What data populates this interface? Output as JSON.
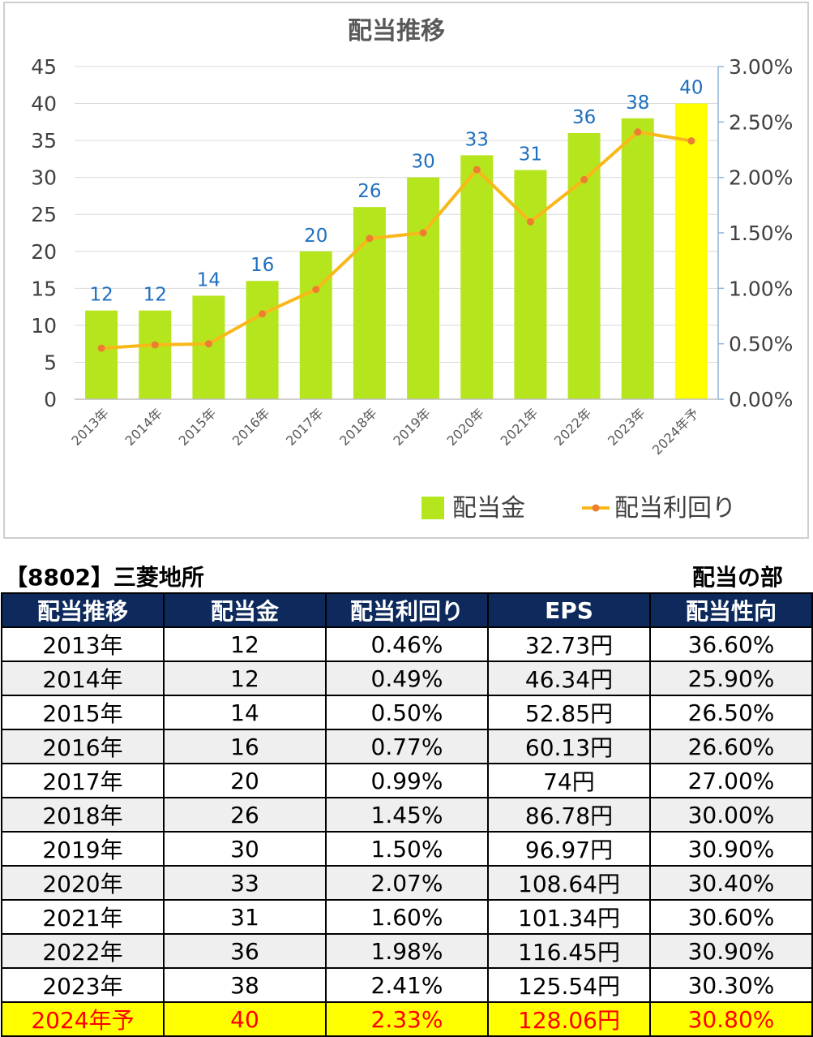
{
  "chart_data": {
    "type": "bar+line",
    "title": "配当推移",
    "categories": [
      "2013年",
      "2014年",
      "2015年",
      "2016年",
      "2017年",
      "2018年",
      "2019年",
      "2020年",
      "2021年",
      "2022年",
      "2023年",
      "2024年予"
    ],
    "series": [
      {
        "name": "配当金",
        "type": "bar",
        "axis": "left",
        "values": [
          12,
          12,
          14,
          16,
          20,
          26,
          30,
          33,
          31,
          36,
          38,
          40
        ],
        "data_labels": [
          "12",
          "12",
          "14",
          "16",
          "20",
          "26",
          "30",
          "33",
          "31",
          "36",
          "38",
          "40"
        ]
      },
      {
        "name": "配当利回り",
        "type": "line",
        "axis": "right",
        "values": [
          0.46,
          0.49,
          0.5,
          0.77,
          0.99,
          1.45,
          1.5,
          2.07,
          1.6,
          1.98,
          2.41,
          2.33
        ]
      }
    ],
    "y_left": {
      "range": [
        0,
        45
      ],
      "ticks": [
        "0",
        "5",
        "10",
        "15",
        "20",
        "25",
        "30",
        "35",
        "40",
        "45"
      ]
    },
    "y_right": {
      "range": [
        0,
        3.0
      ],
      "ticks": [
        "0.00%",
        "0.50%",
        "1.00%",
        "1.50%",
        "2.00%",
        "2.50%",
        "3.00%"
      ]
    },
    "legend_position": "bottom-right",
    "highlight_last": true,
    "colors": {
      "bar": "#b5e61d",
      "bar_highlight": "#ffff00",
      "line": "#f9b81a",
      "marker": "#ed7d31",
      "label": "#1f6fbf",
      "grid": "#d9d9d9",
      "axis_right": "#8fb4d9"
    }
  },
  "caption": {
    "left": "【8802】三菱地所",
    "right": "配当の部"
  },
  "table": {
    "headers": [
      "配当推移",
      "配当金",
      "配当利回り",
      "EPS",
      "配当性向"
    ],
    "rows": [
      [
        "2013年",
        "12",
        "0.46%",
        "32.73円",
        "36.60%"
      ],
      [
        "2014年",
        "12",
        "0.49%",
        "46.34円",
        "25.90%"
      ],
      [
        "2015年",
        "14",
        "0.50%",
        "52.85円",
        "26.50%"
      ],
      [
        "2016年",
        "16",
        "0.77%",
        "60.13円",
        "26.60%"
      ],
      [
        "2017年",
        "20",
        "0.99%",
        "74円",
        "27.00%"
      ],
      [
        "2018年",
        "26",
        "1.45%",
        "86.78円",
        "30.00%"
      ],
      [
        "2019年",
        "30",
        "1.50%",
        "96.97円",
        "30.90%"
      ],
      [
        "2020年",
        "33",
        "2.07%",
        "108.64円",
        "30.40%"
      ],
      [
        "2021年",
        "31",
        "1.60%",
        "101.34円",
        "30.60%"
      ],
      [
        "2022年",
        "36",
        "1.98%",
        "116.45円",
        "30.90%"
      ],
      [
        "2023年",
        "38",
        "2.41%",
        "125.54円",
        "30.30%"
      ],
      [
        "2024年予",
        "40",
        "2.33%",
        "128.06円",
        "30.80%"
      ]
    ]
  }
}
